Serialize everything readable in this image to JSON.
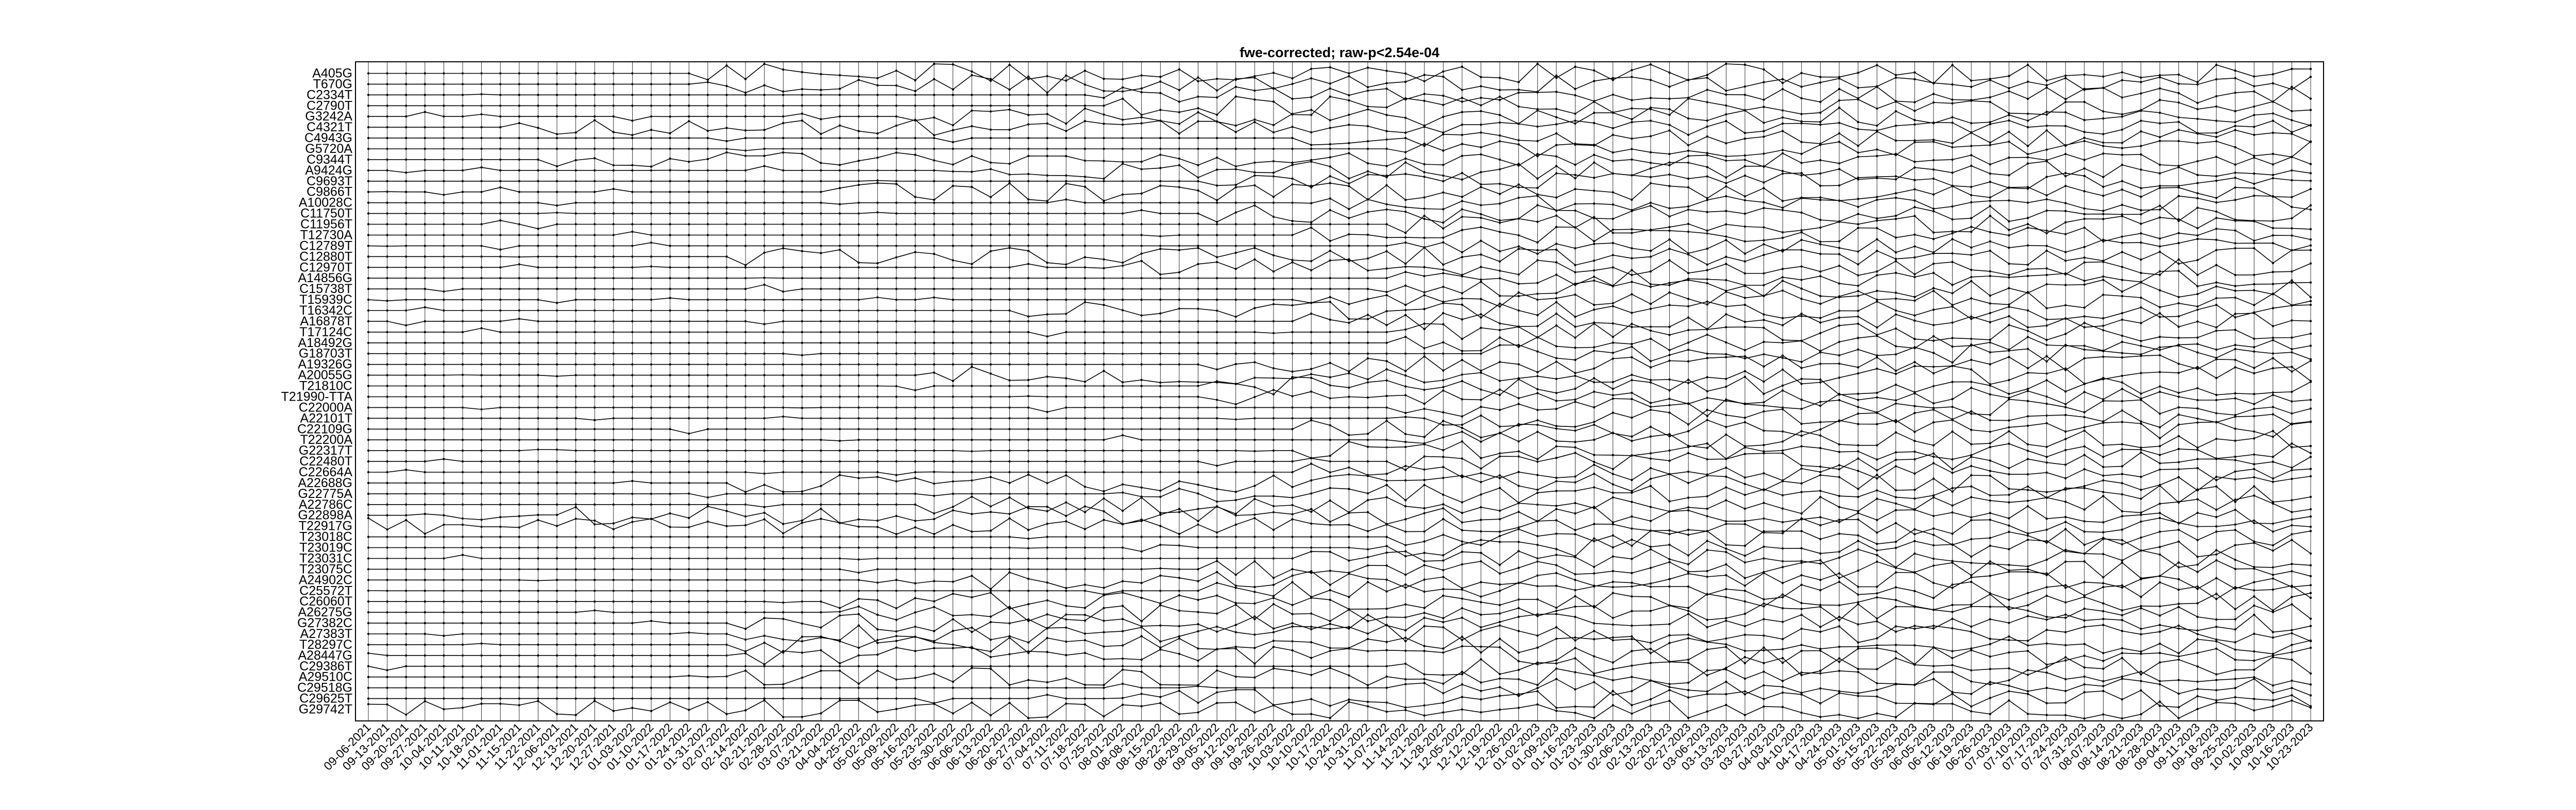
{
  "chart_data": {
    "type": "line",
    "title": "fwe-corrected; raw-p<2.54e-04",
    "xlabel": "",
    "ylabel": "",
    "grid": "vertical",
    "legend": "none",
    "colors": {
      "axes": "#000000",
      "grid": "#000000",
      "series": "#000000",
      "background": "#ffffff"
    },
    "x": [
      "09-06-2021",
      "09-13-2021",
      "09-20-2021",
      "09-27-2021",
      "10-04-2021",
      "10-11-2021",
      "10-18-2021",
      "11-01-2021",
      "11-15-2021",
      "11-22-2021",
      "12-06-2021",
      "12-13-2021",
      "12-20-2021",
      "12-27-2021",
      "01-03-2022",
      "01-10-2022",
      "01-17-2022",
      "01-24-2022",
      "01-31-2022",
      "02-07-2022",
      "02-14-2022",
      "02-21-2022",
      "02-28-2022",
      "03-07-2022",
      "03-21-2022",
      "04-04-2022",
      "04-25-2022",
      "05-02-2022",
      "05-09-2022",
      "05-16-2022",
      "05-23-2022",
      "05-30-2022",
      "06-06-2022",
      "06-13-2022",
      "06-20-2022",
      "06-27-2022",
      "07-04-2022",
      "07-11-2022",
      "07-18-2022",
      "07-25-2022",
      "08-01-2022",
      "08-08-2022",
      "08-15-2022",
      "08-22-2022",
      "08-29-2022",
      "09-05-2022",
      "09-12-2022",
      "09-19-2022",
      "09-26-2022",
      "10-03-2022",
      "10-10-2022",
      "10-17-2022",
      "10-24-2022",
      "10-31-2022",
      "11-07-2022",
      "11-14-2022",
      "11-21-2022",
      "11-28-2022",
      "12-05-2022",
      "12-12-2022",
      "12-19-2022",
      "12-26-2022",
      "01-02-2023",
      "01-09-2023",
      "01-16-2023",
      "01-23-2023",
      "01-30-2023",
      "02-06-2023",
      "02-13-2023",
      "02-20-2023",
      "02-27-2023",
      "03-06-2023",
      "03-13-2023",
      "03-20-2023",
      "03-27-2023",
      "04-03-2023",
      "04-10-2023",
      "04-17-2023",
      "04-24-2023",
      "05-01-2023",
      "05-15-2023",
      "05-22-2023",
      "05-29-2023",
      "06-05-2023",
      "06-12-2023",
      "06-19-2023",
      "06-26-2023",
      "07-03-2023",
      "07-10-2023",
      "07-17-2023",
      "07-24-2023",
      "07-31-2023",
      "08-07-2023",
      "08-14-2023",
      "08-21-2023",
      "08-28-2023",
      "09-04-2023",
      "09-11-2023",
      "09-18-2023",
      "09-25-2023",
      "10-02-2023",
      "10-09-2023",
      "10-16-2023",
      "10-23-2023"
    ],
    "series": [
      {
        "name": "A405G",
        "start": 18,
        "amp": 1.0,
        "seed": 11
      },
      {
        "name": "T670G",
        "start": 18,
        "amp": 0.9,
        "seed": 12
      },
      {
        "name": "C2334T",
        "start": 40,
        "amp": 0.8,
        "seed": 13
      },
      {
        "name": "C2790T",
        "start": 40,
        "amp": 0.9,
        "seed": 14
      },
      {
        "name": "G3242A",
        "start": 30,
        "amp": 0.9,
        "seed": 15
      },
      {
        "name": "C4321T",
        "start": 8,
        "amp": 0.8,
        "seed": 16
      },
      {
        "name": "C4943G",
        "start": 50,
        "amp": 0.8,
        "seed": 17
      },
      {
        "name": "G5720A",
        "start": 55,
        "amp": 0.8,
        "seed": 18
      },
      {
        "name": "C9344T",
        "start": 10,
        "amp": 0.7,
        "seed": 19
      },
      {
        "name": "A9424G",
        "start": 30,
        "amp": 0.9,
        "seed": 20
      },
      {
        "name": "C9693T",
        "start": 45,
        "amp": 0.8,
        "seed": 21
      },
      {
        "name": "C9866T",
        "start": 25,
        "amp": 0.9,
        "seed": 22
      },
      {
        "name": "A10028C",
        "start": 50,
        "amp": 0.8,
        "seed": 23
      },
      {
        "name": "C11750T",
        "start": 45,
        "amp": 0.9,
        "seed": 24
      },
      {
        "name": "C11956T",
        "start": 55,
        "amp": 0.9,
        "seed": 25
      },
      {
        "name": "T12730A",
        "start": 50,
        "amp": 0.8,
        "seed": 26
      },
      {
        "name": "C12789T",
        "start": 55,
        "amp": 0.8,
        "seed": 27
      },
      {
        "name": "C12880T",
        "start": 20,
        "amp": 0.9,
        "seed": 28
      },
      {
        "name": "C12970T",
        "start": 40,
        "amp": 0.8,
        "seed": 29
      },
      {
        "name": "A14856G",
        "start": 55,
        "amp": 0.8,
        "seed": 30
      },
      {
        "name": "C15738T",
        "start": 55,
        "amp": 0.9,
        "seed": 31
      },
      {
        "name": "T15939C",
        "start": 50,
        "amp": 0.9,
        "seed": 32
      },
      {
        "name": "T16342C",
        "start": 35,
        "amp": 0.9,
        "seed": 33
      },
      {
        "name": "A16878T",
        "start": 50,
        "amp": 0.8,
        "seed": 34
      },
      {
        "name": "T17124C",
        "start": 55,
        "amp": 0.9,
        "seed": 35
      },
      {
        "name": "A18492G",
        "start": 55,
        "amp": 0.8,
        "seed": 36
      },
      {
        "name": "G18703T",
        "start": 60,
        "amp": 0.9,
        "seed": 37
      },
      {
        "name": "A19326G",
        "start": 45,
        "amp": 0.9,
        "seed": 38
      },
      {
        "name": "A20055G",
        "start": 30,
        "amp": 0.9,
        "seed": 39
      },
      {
        "name": "T21810C",
        "start": 45,
        "amp": 0.9,
        "seed": 40
      },
      {
        "name": "T21990-TTA",
        "start": 45,
        "amp": 0.9,
        "seed": 41
      },
      {
        "name": "C22000A",
        "start": 55,
        "amp": 0.9,
        "seed": 42
      },
      {
        "name": "A22101T",
        "start": 55,
        "amp": 0.9,
        "seed": 43
      },
      {
        "name": "C22109G",
        "start": 50,
        "amp": 0.9,
        "seed": 44
      },
      {
        "name": "T22200A",
        "start": 55,
        "amp": 0.9,
        "seed": 45
      },
      {
        "name": "G22317T",
        "start": 50,
        "amp": 0.9,
        "seed": 46
      },
      {
        "name": "C22480T",
        "start": 55,
        "amp": 0.9,
        "seed": 47
      },
      {
        "name": "C22664A",
        "start": 50,
        "amp": 0.9,
        "seed": 48
      },
      {
        "name": "A22688G",
        "start": 20,
        "amp": 0.9,
        "seed": 49
      },
      {
        "name": "G22775A",
        "start": 40,
        "amp": 0.9,
        "seed": 50
      },
      {
        "name": "A22786C",
        "start": 30,
        "amp": 0.9,
        "seed": 51
      },
      {
        "name": "G22898A",
        "start": 5,
        "amp": 0.9,
        "seed": 52
      },
      {
        "name": "T22917G",
        "start": 0,
        "amp": 0.8,
        "seed": 53
      },
      {
        "name": "T23018C",
        "start": 55,
        "amp": 0.9,
        "seed": 54
      },
      {
        "name": "T23019C",
        "start": 55,
        "amp": 0.9,
        "seed": 55
      },
      {
        "name": "T23031C",
        "start": 50,
        "amp": 0.9,
        "seed": 56
      },
      {
        "name": "T23075C",
        "start": 45,
        "amp": 0.9,
        "seed": 57
      },
      {
        "name": "A24902C",
        "start": 30,
        "amp": 0.9,
        "seed": 58
      },
      {
        "name": "C25572T",
        "start": 45,
        "amp": 0.9,
        "seed": 59
      },
      {
        "name": "C26060T",
        "start": 25,
        "amp": 0.9,
        "seed": 60
      },
      {
        "name": "A26275G",
        "start": 25,
        "amp": 0.9,
        "seed": 61
      },
      {
        "name": "G27382C",
        "start": 20,
        "amp": 0.9,
        "seed": 62
      },
      {
        "name": "A27383T",
        "start": 20,
        "amp": 0.9,
        "seed": 63
      },
      {
        "name": "T28297C",
        "start": 20,
        "amp": 0.9,
        "seed": 64
      },
      {
        "name": "A28447G",
        "start": 20,
        "amp": 0.9,
        "seed": 65
      },
      {
        "name": "C29386T",
        "start": 55,
        "amp": 0.9,
        "seed": 66
      },
      {
        "name": "A29510C",
        "start": 20,
        "amp": 0.9,
        "seed": 67
      },
      {
        "name": "C29518G",
        "start": 55,
        "amp": 0.9,
        "seed": 68
      },
      {
        "name": "C29625T",
        "start": 40,
        "amp": 0.9,
        "seed": 69
      },
      {
        "name": "G29742T",
        "start": 0,
        "amp": 0.9,
        "seed": 70
      }
    ]
  }
}
